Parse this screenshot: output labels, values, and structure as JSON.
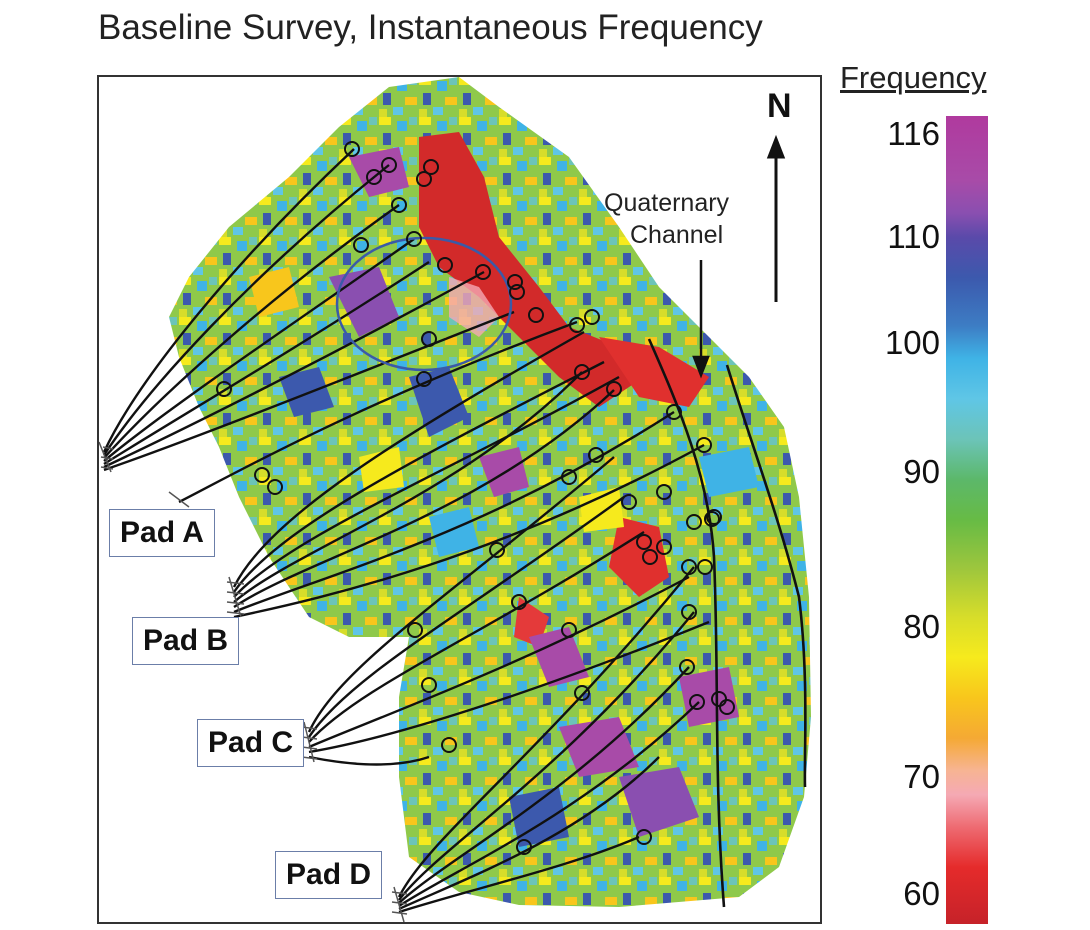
{
  "title": "Baseline Survey, Instantaneous Frequency",
  "north_label": "N",
  "annotation": {
    "line1": "Quaternary",
    "line2": "Channel"
  },
  "pads": [
    {
      "label": "Pad A"
    },
    {
      "label": "Pad B"
    },
    {
      "label": "Pad C"
    },
    {
      "label": "Pad D"
    }
  ],
  "legend": {
    "title": "Frequency",
    "ticks": [
      "116",
      "110",
      "100",
      "90",
      "80",
      "70",
      "60"
    ],
    "range": [
      60,
      116
    ]
  },
  "colors": {
    "high_magenta": "#b03a9e",
    "blue": "#3c59ad",
    "cyan": "#3fb3e6",
    "green": "#67bb45",
    "yellow": "#f6ea1d",
    "orange": "#f5a934",
    "pink": "#f5a9b4",
    "low_red": "#c62229",
    "ellipse": "#3b5aa8"
  }
}
